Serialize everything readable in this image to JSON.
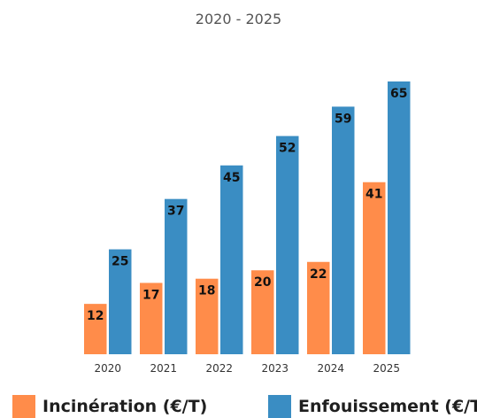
{
  "chart_data": {
    "type": "bar",
    "title": "2020 - 2025",
    "categories": [
      "2020",
      "2021",
      "2022",
      "2023",
      "2024",
      "2025"
    ],
    "series": [
      {
        "name": "Incinération (€/T)",
        "color": "#FF8C4A",
        "values": [
          12,
          17,
          18,
          20,
          22,
          41
        ]
      },
      {
        "name": "Enfouissement (€/T)",
        "color": "#3A8DC3",
        "values": [
          25,
          37,
          45,
          52,
          59,
          65
        ]
      }
    ],
    "xlabel": "",
    "ylabel": "",
    "ylim": [
      0,
      65
    ],
    "grid": false,
    "legend_position": "bottom"
  }
}
